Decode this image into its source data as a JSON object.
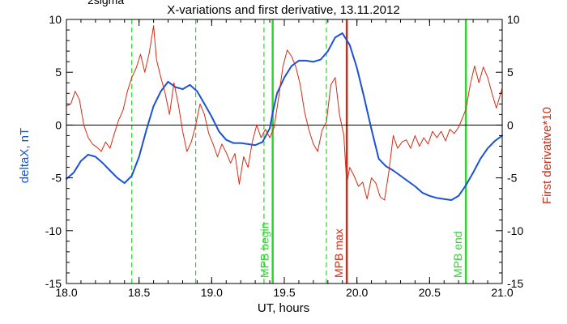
{
  "chart_data": {
    "type": "line",
    "title": "X-variations and first derivative, 13.11.2012",
    "corner_label": "2sigma",
    "xlabel": "UT, hours",
    "ylabel_left": "deltaX, nT",
    "ylabel_right": "First derivative*10",
    "xlim": [
      18.0,
      21.0
    ],
    "ylim": [
      -15,
      10
    ],
    "xticks": [
      "18.0",
      "18.5",
      "19.0",
      "19.5",
      "20.0",
      "20.5",
      "21.0"
    ],
    "yticks": [
      "10",
      "5",
      "0",
      "-5",
      "-10",
      "-15"
    ],
    "zero_line": 0,
    "colors": {
      "deltaX": "#1b52d4",
      "derivative": "#d62a12",
      "mpb_begin_end": "#2bd62b",
      "mpb_max": "#d62a12",
      "zero_line": "#000000",
      "left_axis_label": "#1b52d4",
      "right_axis_label": "#d62a12"
    },
    "series": [
      {
        "key": "deltaX",
        "axis": "left",
        "x": [
          18.0,
          18.05,
          18.1,
          18.15,
          18.2,
          18.25,
          18.3,
          18.35,
          18.4,
          18.45,
          18.5,
          18.55,
          18.6,
          18.65,
          18.7,
          18.75,
          18.8,
          18.85,
          18.9,
          18.95,
          19.0,
          19.05,
          19.1,
          19.15,
          19.2,
          19.25,
          19.3,
          19.35,
          19.4,
          19.42,
          19.45,
          19.5,
          19.55,
          19.6,
          19.65,
          19.7,
          19.75,
          19.8,
          19.85,
          19.9,
          19.95,
          20.0,
          20.05,
          20.1,
          20.15,
          20.2,
          20.25,
          20.3,
          20.35,
          20.4,
          20.45,
          20.5,
          20.55,
          20.6,
          20.65,
          20.7,
          20.75,
          20.8,
          20.85,
          20.9,
          20.95,
          21.0
        ],
        "y": [
          -5.1,
          -4.5,
          -3.4,
          -2.8,
          -3.0,
          -3.6,
          -4.3,
          -5.0,
          -5.5,
          -4.8,
          -3.0,
          -0.5,
          1.8,
          3.2,
          4.1,
          3.6,
          3.4,
          3.8,
          3.2,
          2.0,
          0.8,
          -0.6,
          -1.4,
          -1.7,
          -1.7,
          -1.8,
          -1.9,
          -1.6,
          -0.3,
          1.2,
          3.0,
          4.5,
          5.6,
          6.1,
          6.1,
          6.0,
          6.2,
          7.0,
          8.3,
          8.7,
          7.6,
          5.4,
          2.6,
          -0.4,
          -3.2,
          -3.9,
          -4.3,
          -4.8,
          -5.3,
          -5.8,
          -6.4,
          -6.7,
          -6.9,
          -7.0,
          -7.1,
          -6.7,
          -5.7,
          -4.5,
          -3.2,
          -2.2,
          -1.5,
          -1.0
        ],
        "line_width": 2
      },
      {
        "key": "derivative",
        "axis": "right",
        "x": [
          18.0,
          18.03,
          18.06,
          18.09,
          18.12,
          18.15,
          18.18,
          18.21,
          18.24,
          18.27,
          18.3,
          18.33,
          18.36,
          18.39,
          18.42,
          18.45,
          18.48,
          18.51,
          18.54,
          18.57,
          18.6,
          18.62,
          18.65,
          18.68,
          18.71,
          18.74,
          18.77,
          18.8,
          18.83,
          18.86,
          18.89,
          18.92,
          18.95,
          18.98,
          19.01,
          19.04,
          19.07,
          19.1,
          19.13,
          19.16,
          19.19,
          19.22,
          19.25,
          19.28,
          19.31,
          19.34,
          19.37,
          19.4,
          19.43,
          19.46,
          19.49,
          19.52,
          19.55,
          19.58,
          19.61,
          19.64,
          19.67,
          19.7,
          19.73,
          19.76,
          19.79,
          19.82,
          19.85,
          19.88,
          19.91,
          19.93,
          19.95,
          19.98,
          20.01,
          20.04,
          20.07,
          20.1,
          20.13,
          20.16,
          20.19,
          20.22,
          20.25,
          20.28,
          20.31,
          20.34,
          20.37,
          20.4,
          20.43,
          20.46,
          20.49,
          20.52,
          20.55,
          20.58,
          20.61,
          20.64,
          20.67,
          20.7,
          20.73,
          20.75,
          20.78,
          20.81,
          20.84,
          20.87,
          20.9,
          20.93,
          20.96,
          21.0
        ],
        "y": [
          1.8,
          2.0,
          3.2,
          2.4,
          0.0,
          -1.2,
          -1.8,
          -2.1,
          -2.5,
          -1.6,
          -2.2,
          -0.8,
          0.5,
          1.4,
          3.2,
          4.5,
          5.4,
          6.7,
          5.0,
          6.8,
          9.4,
          6.2,
          4.5,
          3.0,
          1.0,
          4.0,
          2.0,
          -0.6,
          -2.5,
          -1.6,
          0.0,
          2.0,
          1.0,
          -0.8,
          -1.8,
          -3.0,
          -1.8,
          -2.6,
          -3.6,
          -2.7,
          -5.6,
          -3.0,
          -4.0,
          -1.6,
          0.0,
          -1.2,
          -0.4,
          -1.2,
          -0.2,
          2.5,
          5.5,
          7.1,
          6.5,
          5.5,
          3.8,
          1.2,
          -0.5,
          -1.8,
          -2.5,
          -0.5,
          0.3,
          3.8,
          4.5,
          1.0,
          -1.0,
          -5.6,
          -4.0,
          -4.8,
          -5.8,
          -5.4,
          -7.0,
          -5.0,
          -5.5,
          -6.8,
          -7.1,
          -4.4,
          -1.0,
          -2.2,
          -1.6,
          -1.4,
          -2.2,
          -1.0,
          -2.0,
          -1.2,
          -1.8,
          -0.6,
          -1.2,
          -0.6,
          -1.5,
          -0.4,
          -0.8,
          -0.2,
          0.8,
          1.5,
          3.8,
          5.6,
          4.0,
          5.5,
          4.5,
          3.0,
          1.6,
          3.5
        ],
        "line_width": 1
      }
    ],
    "vertical_markers": [
      {
        "x": 18.45,
        "style": "dashed",
        "color": "#2bd62b",
        "label": ""
      },
      {
        "x": 18.89,
        "style": "dashed",
        "color": "#2bd62b",
        "label": ""
      },
      {
        "x": 19.36,
        "style": "dashed",
        "color": "#2bd62b",
        "label": ""
      },
      {
        "x": 19.42,
        "style": "solid",
        "color": "#2bd62b",
        "label": "MPB begin"
      },
      {
        "x": 19.79,
        "style": "dashed",
        "color": "#2bd62b",
        "label": ""
      },
      {
        "x": 19.93,
        "style": "solid",
        "color": "#d62a12",
        "label": "MPB max"
      },
      {
        "x": 20.75,
        "style": "solid",
        "color": "#2bd62b",
        "label": "MPB end"
      }
    ]
  }
}
